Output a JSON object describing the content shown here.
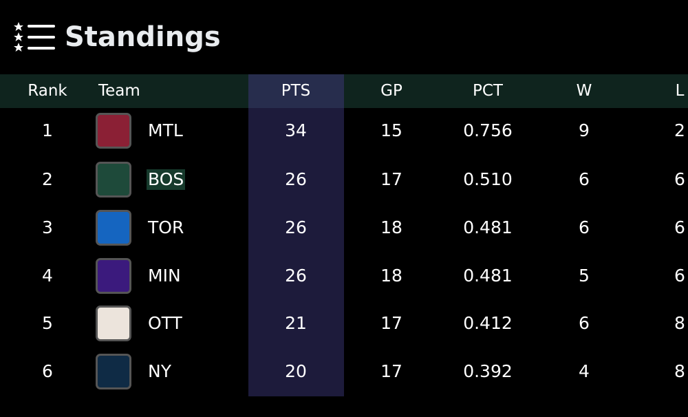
{
  "header": {
    "title": "Standings"
  },
  "table": {
    "columns": [
      "Rank",
      "Team",
      "PTS",
      "GP",
      "PCT",
      "W",
      "L"
    ],
    "rows": [
      [
        "1",
        "MTL",
        "34",
        "15",
        "0.756",
        "9",
        "2"
      ],
      [
        "2",
        "BOS",
        "26",
        "17",
        "0.510",
        "6",
        "6"
      ],
      [
        "3",
        "TOR",
        "26",
        "18",
        "0.481",
        "6",
        "6"
      ],
      [
        "4",
        "MIN",
        "26",
        "18",
        "0.481",
        "5",
        "6"
      ],
      [
        "5",
        "OTT",
        "21",
        "17",
        "0.412",
        "6",
        "8"
      ],
      [
        "6",
        "NY",
        "20",
        "17",
        "0.392",
        "4",
        "8"
      ]
    ]
  }
}
